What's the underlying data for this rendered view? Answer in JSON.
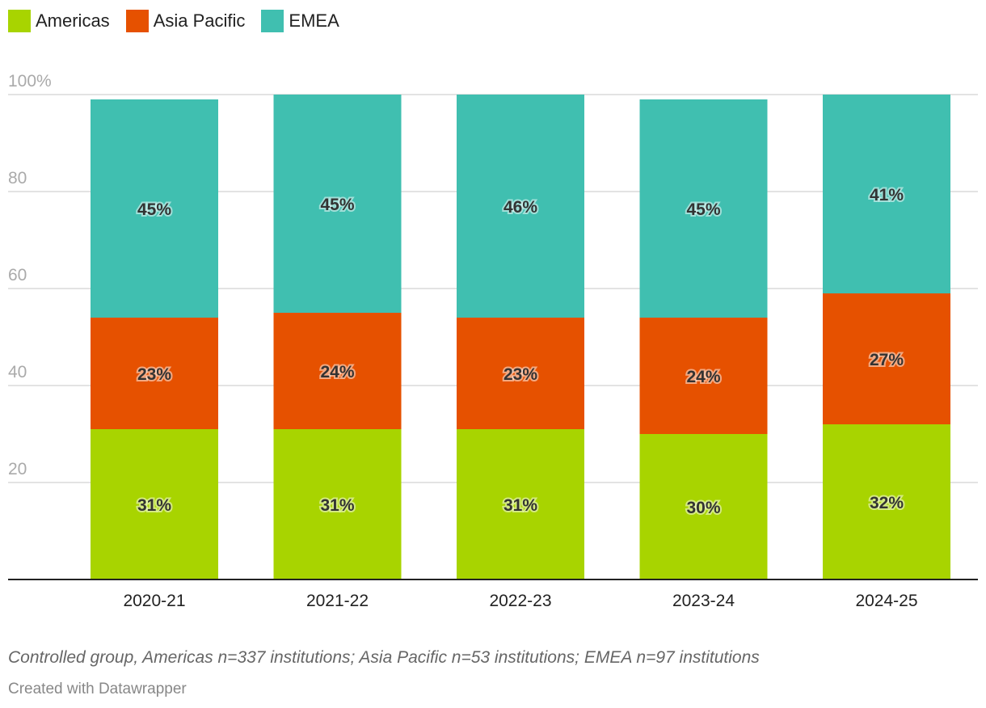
{
  "chart_data": {
    "type": "bar",
    "stacked": true,
    "categories": [
      "2020-21",
      "2021-22",
      "2022-23",
      "2023-24",
      "2024-25"
    ],
    "series": [
      {
        "name": "Americas",
        "color": "#a8d400",
        "values": [
          31,
          31,
          31,
          30,
          32
        ]
      },
      {
        "name": "Asia Pacific",
        "color": "#e65100",
        "values": [
          23,
          24,
          23,
          24,
          27
        ]
      },
      {
        "name": "EMEA",
        "color": "#40bfb0",
        "values": [
          45,
          45,
          46,
          45,
          41
        ]
      }
    ],
    "ylim": [
      0,
      100
    ],
    "yticks": [
      {
        "v": 100,
        "label": "100%"
      },
      {
        "v": 80,
        "label": "80"
      },
      {
        "v": 60,
        "label": "60"
      },
      {
        "v": 40,
        "label": "40"
      },
      {
        "v": 20,
        "label": "20"
      }
    ],
    "grid": true,
    "legend": "top-left",
    "value_label_suffix": "%"
  },
  "notes": "Controlled group, Americas n=337 institutions; Asia Pacific n=53 institutions; EMEA n=97 institutions",
  "credit": "Created with Datawrapper"
}
